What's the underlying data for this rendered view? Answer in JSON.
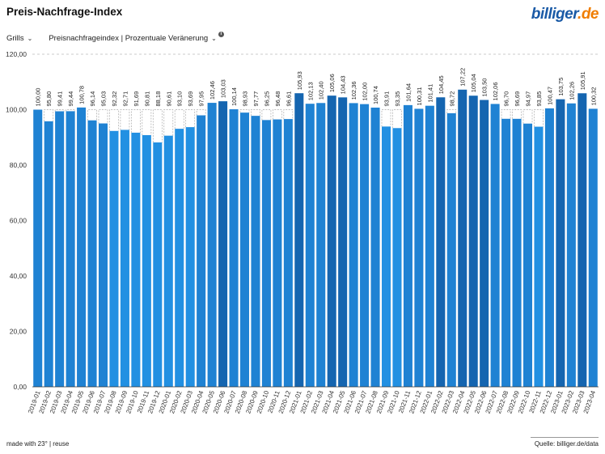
{
  "header": {
    "title": "Preis-Nachfrage-Index",
    "logo_part1": "billiger",
    "logo_part2": ".de"
  },
  "controls": {
    "category": "Grills",
    "metric": "Preisnachfrageindex | Prozentuale Veränerung"
  },
  "footer": {
    "left": "made with 23° | reuse",
    "right": "Quelle: billiger.de/data"
  },
  "colors": {
    "bar_base": "#1f82d3",
    "bar_dark": "#1565b0",
    "bar_light": "#2290e2",
    "baseline_line": "#aaaaaa",
    "grid_dash": "#bbbbbb"
  },
  "chart_data": {
    "type": "bar",
    "title": "Preis-Nachfrage-Index",
    "ylim": [
      0,
      120
    ],
    "yticks": [
      "0,00",
      "20,00",
      "40,00",
      "60,00",
      "80,00",
      "100,00",
      "120,00"
    ],
    "ytick_values": [
      0,
      20,
      40,
      60,
      80,
      100,
      120
    ],
    "grid": false,
    "categories": [
      "2019-01",
      "2019-02",
      "2019-03",
      "2019-04",
      "2019-05",
      "2019-06",
      "2019-07",
      "2019-08",
      "2019-09",
      "2019-10",
      "2019-11",
      "2019-12",
      "2020-01",
      "2020-02",
      "2020-03",
      "2020-04",
      "2020-05",
      "2020-06",
      "2020-07",
      "2020-08",
      "2020-09",
      "2020-10",
      "2020-11",
      "2020-12",
      "2021-01",
      "2021-02",
      "2021-03",
      "2021-04",
      "2021-05",
      "2021-06",
      "2021-07",
      "2021-08",
      "2021-09",
      "2021-10",
      "2021-11",
      "2021-12",
      "2022-01",
      "2022-02",
      "2022-03",
      "2022-04",
      "2022-05",
      "2022-06",
      "2022-07",
      "2022-08",
      "2022-09",
      "2022-10",
      "2022-11",
      "2022-12",
      "2023-01",
      "2023-02",
      "2023-03",
      "2023-04"
    ],
    "values": [
      100.0,
      95.8,
      99.41,
      99.44,
      100.78,
      96.14,
      95.03,
      92.32,
      92.71,
      91.69,
      90.81,
      88.18,
      90.61,
      93.1,
      93.69,
      97.95,
      102.46,
      103.03,
      100.14,
      98.93,
      97.77,
      96.25,
      96.48,
      96.61,
      105.93,
      102.13,
      102.4,
      105.06,
      104.43,
      102.36,
      102.0,
      100.74,
      93.91,
      93.35,
      101.64,
      100.31,
      101.41,
      104.45,
      98.72,
      107.22,
      105.04,
      103.5,
      102.06,
      96.7,
      96.69,
      94.97,
      93.85,
      100.47,
      103.75,
      102.26,
      105.91,
      100.32
    ],
    "labels": [
      "100,00",
      "95,80",
      "99,41",
      "99,44",
      "100,78",
      "96,14",
      "95,03",
      "92,32",
      "92,71",
      "91,69",
      "90,81",
      "88,18",
      "90,61",
      "93,10",
      "93,69",
      "97,95",
      "102,46",
      "103,03",
      "100,14",
      "98,93",
      "97,77",
      "96,25",
      "96,48",
      "96,61",
      "105,93",
      "102,13",
      "102,40",
      "105,06",
      "104,43",
      "102,36",
      "102,00",
      "100,74",
      "93,91",
      "93,35",
      "101,64",
      "100,31",
      "101,41",
      "104,45",
      "98,72",
      "107,22",
      "105,04",
      "103,50",
      "102,06",
      "96,70",
      "96,69",
      "94,97",
      "93,85",
      "100,47",
      "103,75",
      "102,26",
      "105,91",
      "100,32"
    ],
    "baseline": 100
  }
}
